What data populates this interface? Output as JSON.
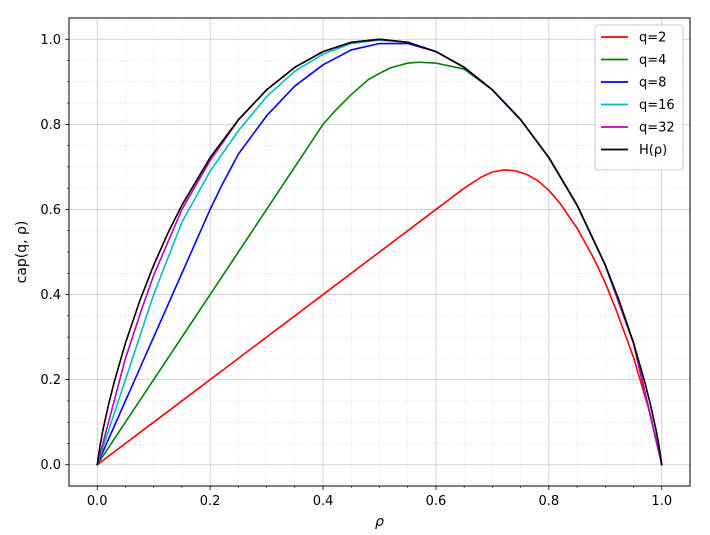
{
  "chart_data": {
    "type": "line",
    "title": "",
    "xlabel": "ρ",
    "ylabel": "cap(q, ρ)",
    "xlim": [
      -0.05,
      1.05
    ],
    "ylim": [
      -0.05,
      1.05
    ],
    "xticks": [
      "0.0",
      "0.2",
      "0.4",
      "0.6",
      "0.8",
      "1.0"
    ],
    "yticks": [
      "0.0",
      "0.2",
      "0.4",
      "0.6",
      "0.8",
      "1.0"
    ],
    "grid": "major and minor",
    "legend_position": "top-right",
    "series": [
      {
        "name": "q=2",
        "color": "#ff0000",
        "x": [
          0,
          0.1,
          0.2,
          0.3,
          0.4,
          0.5,
          0.6,
          0.65,
          0.68,
          0.7,
          0.72,
          0.74,
          0.76,
          0.78,
          0.8,
          0.82,
          0.85,
          0.88,
          0.9,
          0.92,
          0.95,
          0.98,
          1.0
        ],
        "y": [
          0,
          0.1,
          0.2,
          0.3,
          0.4,
          0.5,
          0.6,
          0.65,
          0.676,
          0.688,
          0.693,
          0.691,
          0.683,
          0.668,
          0.645,
          0.614,
          0.556,
          0.484,
          0.427,
          0.361,
          0.252,
          0.117,
          0
        ]
      },
      {
        "name": "q=4",
        "color": "#008000",
        "x": [
          0,
          0.1,
          0.2,
          0.3,
          0.4,
          0.42,
          0.45,
          0.48,
          0.5,
          0.52,
          0.55,
          0.57,
          0.6,
          0.65,
          0.7,
          0.75,
          0.8,
          0.85,
          0.9,
          0.95,
          1.0
        ],
        "y": [
          0,
          0.2,
          0.4,
          0.6,
          0.8,
          0.83,
          0.87,
          0.905,
          0.92,
          0.933,
          0.944,
          0.946,
          0.944,
          0.93,
          0.881,
          0.811,
          0.722,
          0.61,
          0.469,
          0.286,
          0
        ]
      },
      {
        "name": "q=8",
        "color": "#0000ff",
        "x": [
          0,
          0.1,
          0.2,
          0.22,
          0.25,
          0.3,
          0.35,
          0.4,
          0.45,
          0.5,
          0.55,
          0.6,
          0.65,
          0.7,
          0.75,
          0.8,
          0.85,
          0.9,
          0.95,
          1.0
        ],
        "y": [
          0,
          0.3,
          0.6,
          0.655,
          0.73,
          0.82,
          0.89,
          0.94,
          0.975,
          0.99,
          0.99,
          0.971,
          0.934,
          0.881,
          0.811,
          0.722,
          0.61,
          0.469,
          0.286,
          0
        ]
      },
      {
        "name": "q=16",
        "color": "#00bfbf",
        "x": [
          0,
          0.05,
          0.1,
          0.15,
          0.2,
          0.25,
          0.3,
          0.35,
          0.4,
          0.45,
          0.5,
          0.55,
          0.6,
          0.65,
          0.7,
          0.75,
          0.8,
          0.85,
          0.9,
          0.95,
          1.0
        ],
        "y": [
          0,
          0.2,
          0.4,
          0.57,
          0.69,
          0.785,
          0.865,
          0.925,
          0.965,
          0.99,
          0.998,
          0.993,
          0.971,
          0.934,
          0.881,
          0.811,
          0.722,
          0.61,
          0.469,
          0.286,
          0
        ]
      },
      {
        "name": "q=32",
        "color": "#bf00bf",
        "x": [
          0,
          0.02,
          0.05,
          0.08,
          0.1,
          0.15,
          0.2,
          0.25,
          0.3,
          0.35,
          0.4,
          0.45,
          0.5,
          0.55,
          0.6,
          0.65,
          0.7,
          0.75,
          0.8,
          0.85,
          0.9,
          0.95,
          1.0
        ],
        "y": [
          0,
          0.1,
          0.25,
          0.37,
          0.445,
          0.6,
          0.715,
          0.81,
          0.881,
          0.934,
          0.971,
          0.993,
          1.0,
          0.993,
          0.971,
          0.934,
          0.881,
          0.811,
          0.722,
          0.61,
          0.469,
          0.286,
          0
        ]
      },
      {
        "name": "H(ρ)",
        "color": "#000000",
        "x": [
          0,
          0.005,
          0.01,
          0.02,
          0.03,
          0.05,
          0.075,
          0.1,
          0.125,
          0.15,
          0.2,
          0.25,
          0.3,
          0.35,
          0.4,
          0.45,
          0.5,
          0.55,
          0.6,
          0.65,
          0.7,
          0.75,
          0.8,
          0.85,
          0.9,
          0.925,
          0.95,
          0.97,
          0.98,
          0.99,
          0.995,
          1.0
        ],
        "y": [
          0,
          0.045,
          0.081,
          0.141,
          0.194,
          0.286,
          0.384,
          0.469,
          0.544,
          0.61,
          0.722,
          0.811,
          0.881,
          0.934,
          0.971,
          0.993,
          1.0,
          0.993,
          0.971,
          0.934,
          0.881,
          0.811,
          0.722,
          0.61,
          0.469,
          0.384,
          0.286,
          0.194,
          0.141,
          0.081,
          0.045,
          0
        ]
      }
    ]
  }
}
